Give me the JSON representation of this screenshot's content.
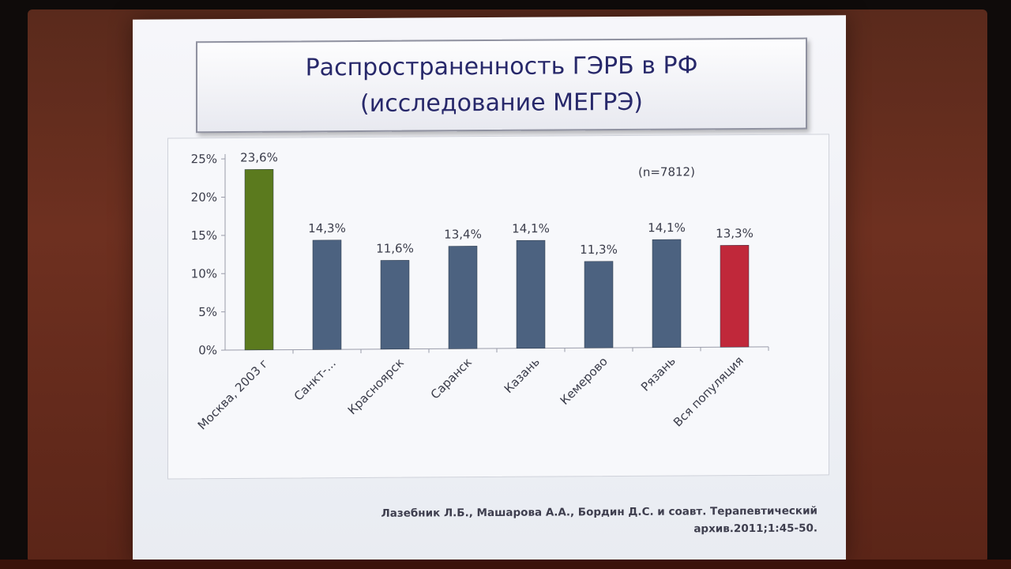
{
  "slide": {
    "title_line1": "Распространенность ГЭРБ в РФ",
    "title_line2": "(исследование МЕГРЭ)",
    "sample_note": "(n=7812)",
    "citation_line1": "Лазебник Л.Б., Машарова А.А., Бордин Д.С. и соавт. Терапевтический",
    "citation_line2": "архив.2011;1:45-50."
  },
  "chart_data": {
    "type": "bar",
    "categories": [
      "Москва, 2003 г",
      "Санкт-...",
      "Красноярск",
      "Саранск",
      "Казань",
      "Кемерово",
      "Рязань",
      "Вся популяция"
    ],
    "values": [
      23.6,
      14.3,
      11.6,
      13.4,
      14.1,
      11.3,
      14.1,
      13.3
    ],
    "data_labels": [
      "23,6%",
      "14,3%",
      "11,6%",
      "13,4%",
      "14,1%",
      "11,3%",
      "14,1%",
      "13,3%"
    ],
    "y_ticks": [
      "0%",
      "5%",
      "10%",
      "15%",
      "20%",
      "25%"
    ],
    "ylim": [
      0,
      25
    ],
    "bar_colors": [
      "#5b7a1e",
      "#4c6280",
      "#4c6280",
      "#4c6280",
      "#4c6280",
      "#4c6280",
      "#4c6280",
      "#c0283a"
    ],
    "grid": false,
    "xlabel": "",
    "ylabel": ""
  }
}
